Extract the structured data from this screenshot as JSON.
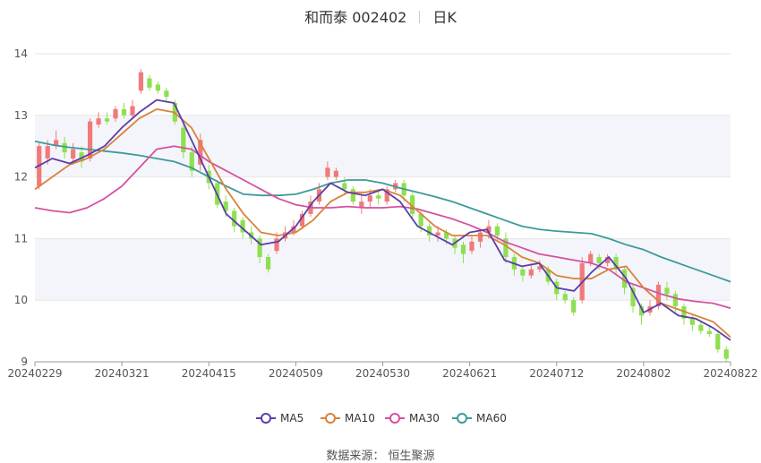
{
  "header": {
    "name": "和而泰 002402",
    "period": "日K"
  },
  "footer": {
    "source": "数据来源： 恒生聚源"
  },
  "colors": {
    "up": "#f07a7a",
    "down": "#8ee04f",
    "ma5": "#5b3ea8",
    "ma10": "#d9823a",
    "ma30": "#d452a0",
    "ma60": "#3e9a9a",
    "band": "#f4f5fb",
    "grid": "#e6e6e6"
  },
  "chart_data": {
    "type": "candlestick",
    "title": "和而泰 002402 日K",
    "ylim": [
      9,
      14
    ],
    "yticks": [
      9,
      10,
      11,
      12,
      13,
      14
    ],
    "dates": [
      "20240229",
      "20240321",
      "20240415",
      "20240509",
      "20240530",
      "20240621",
      "20240712",
      "20240802",
      "20240822"
    ],
    "x_axis_labels": [
      "20240229",
      "20240321",
      "20240415",
      "20240509",
      "20240530",
      "20240621",
      "20240712",
      "20240802",
      "20240822"
    ],
    "legend": [
      "MA5",
      "MA10",
      "MA30",
      "MA60"
    ],
    "legend_position": "bottom",
    "candles_approx": [
      [
        11.85,
        12.5,
        12.55,
        11.8
      ],
      [
        12.3,
        12.5,
        12.6,
        12.2
      ],
      [
        12.5,
        12.6,
        12.75,
        12.45
      ],
      [
        12.55,
        12.4,
        12.65,
        12.3
      ],
      [
        12.3,
        12.45,
        12.55,
        12.2
      ],
      [
        12.4,
        12.25,
        12.5,
        12.15
      ],
      [
        12.3,
        12.9,
        12.95,
        12.25
      ],
      [
        12.85,
        12.95,
        13.05,
        12.8
      ],
      [
        12.95,
        12.9,
        13.05,
        12.85
      ],
      [
        12.95,
        13.1,
        13.15,
        12.9
      ],
      [
        13.1,
        13.0,
        13.2,
        12.95
      ],
      [
        13.0,
        13.15,
        13.25,
        12.95
      ],
      [
        13.4,
        13.7,
        13.75,
        13.35
      ],
      [
        13.6,
        13.45,
        13.65,
        13.4
      ],
      [
        13.5,
        13.4,
        13.55,
        13.35
      ],
      [
        13.4,
        13.3,
        13.45,
        13.2
      ],
      [
        13.2,
        12.9,
        13.25,
        12.85
      ],
      [
        12.8,
        12.4,
        12.85,
        12.3
      ],
      [
        12.4,
        12.1,
        12.5,
        12.0
      ],
      [
        12.2,
        12.6,
        12.7,
        12.1
      ],
      [
        12.1,
        11.9,
        12.2,
        11.8
      ],
      [
        11.9,
        11.55,
        11.95,
        11.5
      ],
      [
        11.6,
        11.45,
        11.7,
        11.35
      ],
      [
        11.45,
        11.2,
        11.5,
        11.1
      ],
      [
        11.3,
        11.1,
        11.35,
        11.0
      ],
      [
        11.1,
        11.0,
        11.2,
        10.9
      ],
      [
        11.0,
        10.7,
        11.05,
        10.6
      ],
      [
        10.7,
        10.5,
        10.75,
        10.45
      ],
      [
        10.8,
        11.0,
        11.1,
        10.75
      ],
      [
        11.0,
        11.1,
        11.2,
        10.95
      ],
      [
        11.1,
        11.2,
        11.3,
        11.05
      ],
      [
        11.2,
        11.4,
        11.45,
        11.15
      ],
      [
        11.4,
        11.6,
        11.7,
        11.35
      ],
      [
        11.6,
        11.8,
        11.9,
        11.55
      ],
      [
        12.0,
        12.15,
        12.25,
        11.95
      ],
      [
        12.0,
        12.1,
        12.15,
        11.95
      ],
      [
        11.9,
        11.8,
        12.0,
        11.7
      ],
      [
        11.8,
        11.6,
        11.85,
        11.55
      ],
      [
        11.5,
        11.6,
        11.7,
        11.4
      ],
      [
        11.6,
        11.7,
        11.8,
        11.5
      ],
      [
        11.7,
        11.65,
        11.8,
        11.55
      ],
      [
        11.6,
        11.8,
        11.85,
        11.55
      ],
      [
        11.8,
        11.9,
        11.95,
        11.75
      ],
      [
        11.9,
        11.7,
        11.95,
        11.6
      ],
      [
        11.7,
        11.4,
        11.75,
        11.3
      ],
      [
        11.4,
        11.2,
        11.45,
        11.1
      ],
      [
        11.2,
        11.05,
        11.25,
        10.95
      ],
      [
        11.05,
        11.1,
        11.2,
        10.95
      ],
      [
        11.1,
        11.0,
        11.15,
        10.9
      ],
      [
        11.0,
        10.85,
        11.05,
        10.75
      ],
      [
        10.9,
        10.75,
        10.95,
        10.6
      ],
      [
        10.8,
        10.95,
        11.05,
        10.75
      ],
      [
        10.95,
        11.1,
        11.15,
        10.85
      ],
      [
        11.1,
        11.2,
        11.3,
        11.0
      ],
      [
        11.2,
        11.05,
        11.25,
        10.95
      ],
      [
        11.0,
        10.7,
        11.1,
        10.6
      ],
      [
        10.7,
        10.5,
        10.75,
        10.4
      ],
      [
        10.5,
        10.4,
        10.55,
        10.3
      ],
      [
        10.4,
        10.5,
        10.6,
        10.35
      ],
      [
        10.5,
        10.55,
        10.65,
        10.45
      ],
      [
        10.5,
        10.3,
        10.55,
        10.25
      ],
      [
        10.3,
        10.1,
        10.35,
        10.0
      ],
      [
        10.1,
        10.0,
        10.15,
        9.95
      ],
      [
        10.0,
        9.8,
        10.05,
        9.75
      ],
      [
        10.0,
        10.6,
        10.7,
        9.95
      ],
      [
        10.6,
        10.75,
        10.8,
        10.55
      ],
      [
        10.7,
        10.6,
        10.75,
        10.5
      ],
      [
        10.6,
        10.7,
        10.75,
        10.55
      ],
      [
        10.7,
        10.5,
        10.75,
        10.4
      ],
      [
        10.5,
        10.2,
        10.55,
        10.1
      ],
      [
        10.2,
        9.9,
        10.25,
        9.8
      ],
      [
        9.9,
        9.75,
        9.95,
        9.6
      ],
      [
        9.8,
        9.9,
        10.0,
        9.75
      ],
      [
        9.9,
        10.25,
        10.3,
        9.85
      ],
      [
        10.2,
        10.1,
        10.3,
        10.0
      ],
      [
        10.1,
        9.9,
        10.15,
        9.8
      ],
      [
        9.9,
        9.7,
        9.95,
        9.6
      ],
      [
        9.7,
        9.6,
        9.75,
        9.5
      ],
      [
        9.6,
        9.5,
        9.65,
        9.45
      ],
      [
        9.5,
        9.45,
        9.6,
        9.4
      ],
      [
        9.45,
        9.2,
        9.5,
        9.15
      ],
      [
        9.2,
        9.05,
        9.25,
        9.0
      ]
    ],
    "ma5": [
      12.15,
      12.3,
      12.22,
      12.35,
      12.5,
      12.8,
      13.05,
      13.25,
      13.2,
      12.6,
      12.0,
      11.4,
      11.15,
      10.9,
      10.95,
      11.2,
      11.6,
      11.9,
      11.75,
      11.7,
      11.8,
      11.6,
      11.2,
      11.05,
      10.9,
      11.1,
      11.15,
      10.65,
      10.55,
      10.6,
      10.2,
      10.15,
      10.45,
      10.7,
      10.35,
      9.8,
      9.95,
      9.75,
      9.7,
      9.55,
      9.35
    ],
    "ma10": [
      11.8,
      12.0,
      12.2,
      12.3,
      12.45,
      12.7,
      12.95,
      13.1,
      13.05,
      12.8,
      12.3,
      11.8,
      11.4,
      11.1,
      11.05,
      11.1,
      11.3,
      11.6,
      11.75,
      11.75,
      11.8,
      11.7,
      11.45,
      11.2,
      11.05,
      11.05,
      11.05,
      10.9,
      10.7,
      10.6,
      10.4,
      10.35,
      10.35,
      10.5,
      10.55,
      10.2,
      9.95,
      9.85,
      9.75,
      9.65,
      9.4
    ],
    "ma30": [
      11.5,
      11.45,
      11.42,
      11.5,
      11.65,
      11.85,
      12.15,
      12.45,
      12.5,
      12.45,
      12.25,
      12.1,
      11.95,
      11.8,
      11.65,
      11.55,
      11.5,
      11.5,
      11.52,
      11.5,
      11.5,
      11.52,
      11.48,
      11.4,
      11.32,
      11.22,
      11.1,
      10.95,
      10.85,
      10.75,
      10.7,
      10.65,
      10.6,
      10.5,
      10.3,
      10.2,
      10.1,
      10.02,
      9.98,
      9.95,
      9.87
    ],
    "ma60": [
      12.58,
      12.52,
      12.48,
      12.45,
      12.42,
      12.39,
      12.35,
      12.3,
      12.25,
      12.15,
      12.0,
      11.85,
      11.72,
      11.7,
      11.7,
      11.72,
      11.8,
      11.9,
      11.95,
      11.95,
      11.9,
      11.82,
      11.75,
      11.68,
      11.6,
      11.5,
      11.4,
      11.3,
      11.2,
      11.15,
      11.12,
      11.1,
      11.08,
      11.0,
      10.9,
      10.82,
      10.7,
      10.6,
      10.5,
      10.4,
      10.3
    ]
  }
}
